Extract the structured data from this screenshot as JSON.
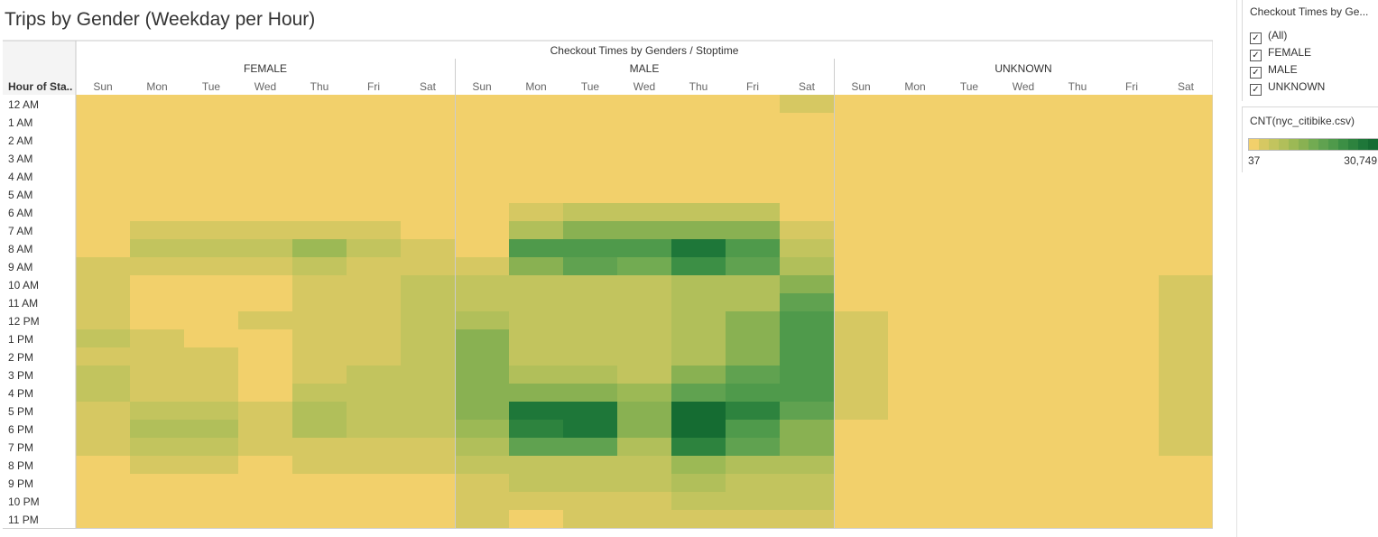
{
  "title": "Trips by Gender (Weekday per Hour)",
  "chart_data": {
    "type": "heatmap",
    "column_header": "Checkout Times by Genders / Stoptime",
    "row_header": "Hour of Sta..",
    "genders": [
      "FEMALE",
      "MALE",
      "UNKNOWN"
    ],
    "days": [
      "Sun",
      "Mon",
      "Tue",
      "Wed",
      "Thu",
      "Fri",
      "Sat"
    ],
    "hours": [
      "12 AM",
      "1 AM",
      "2 AM",
      "3 AM",
      "4 AM",
      "5 AM",
      "6 AM",
      "7 AM",
      "8 AM",
      "9 AM",
      "10 AM",
      "11 AM",
      "12 PM",
      "1 PM",
      "2 PM",
      "3 PM",
      "4 PM",
      "5 PM",
      "6 PM",
      "7 PM",
      "8 PM",
      "9 PM",
      "10 PM",
      "11 PM"
    ],
    "color_scale": {
      "measure": "CNT(nyc_citibike.csv)",
      "min": 37,
      "max": 30749,
      "min_label": "37",
      "max_label": "30,749",
      "colors": [
        "#f2d06b",
        "#d6c862",
        "#c2c45e",
        "#b1bf5a",
        "#9cb955",
        "#89b152",
        "#72ab52",
        "#60a250",
        "#4f9a4b",
        "#3c8f45",
        "#2d833e",
        "#1e7739",
        "#156c32"
      ]
    },
    "levels": {
      "FEMALE": [
        [
          0,
          0,
          0,
          0,
          0,
          0,
          0
        ],
        [
          0,
          0,
          0,
          0,
          0,
          0,
          0
        ],
        [
          0,
          0,
          0,
          0,
          0,
          0,
          0
        ],
        [
          0,
          0,
          0,
          0,
          0,
          0,
          0
        ],
        [
          0,
          0,
          0,
          0,
          0,
          0,
          0
        ],
        [
          0,
          0,
          0,
          0,
          0,
          0,
          0
        ],
        [
          0,
          0,
          0,
          0,
          0,
          0,
          0
        ],
        [
          0,
          1,
          1,
          1,
          1,
          1,
          0
        ],
        [
          0,
          2,
          2,
          2,
          4,
          2,
          1
        ],
        [
          1,
          1,
          1,
          1,
          2,
          1,
          1
        ],
        [
          1,
          0,
          0,
          0,
          1,
          1,
          2
        ],
        [
          1,
          0,
          0,
          0,
          1,
          1,
          2
        ],
        [
          1,
          0,
          0,
          1,
          1,
          1,
          2
        ],
        [
          2,
          1,
          0,
          0,
          1,
          1,
          2
        ],
        [
          1,
          1,
          1,
          0,
          1,
          1,
          2
        ],
        [
          2,
          1,
          1,
          0,
          1,
          2,
          2
        ],
        [
          2,
          1,
          1,
          0,
          2,
          2,
          2
        ],
        [
          1,
          2,
          2,
          1,
          3,
          2,
          2
        ],
        [
          1,
          3,
          3,
          1,
          3,
          2,
          2
        ],
        [
          1,
          2,
          2,
          1,
          1,
          1,
          1
        ],
        [
          0,
          1,
          1,
          0,
          1,
          1,
          1
        ],
        [
          0,
          0,
          0,
          0,
          0,
          0,
          0
        ],
        [
          0,
          0,
          0,
          0,
          0,
          0,
          0
        ],
        [
          0,
          0,
          0,
          0,
          0,
          0,
          0
        ]
      ],
      "MALE": [
        [
          0,
          0,
          0,
          0,
          0,
          0,
          1
        ],
        [
          0,
          0,
          0,
          0,
          0,
          0,
          0
        ],
        [
          0,
          0,
          0,
          0,
          0,
          0,
          0
        ],
        [
          0,
          0,
          0,
          0,
          0,
          0,
          0
        ],
        [
          0,
          0,
          0,
          0,
          0,
          0,
          0
        ],
        [
          0,
          0,
          0,
          0,
          0,
          0,
          0
        ],
        [
          0,
          1,
          2,
          2,
          2,
          2,
          0
        ],
        [
          0,
          3,
          5,
          5,
          5,
          5,
          1
        ],
        [
          0,
          8,
          8,
          8,
          11,
          8,
          2
        ],
        [
          1,
          5,
          7,
          6,
          9,
          7,
          3
        ],
        [
          2,
          2,
          2,
          2,
          3,
          3,
          5
        ],
        [
          2,
          2,
          2,
          2,
          3,
          3,
          7
        ],
        [
          3,
          2,
          2,
          2,
          3,
          5,
          8
        ],
        [
          5,
          2,
          2,
          2,
          3,
          5,
          8
        ],
        [
          5,
          2,
          2,
          2,
          3,
          5,
          8
        ],
        [
          5,
          3,
          3,
          2,
          5,
          7,
          8
        ],
        [
          5,
          5,
          5,
          4,
          7,
          8,
          8
        ],
        [
          5,
          11,
          11,
          5,
          12,
          10,
          7
        ],
        [
          4,
          10,
          11,
          5,
          12,
          8,
          5
        ],
        [
          3,
          7,
          7,
          3,
          10,
          7,
          5
        ],
        [
          2,
          2,
          2,
          2,
          4,
          3,
          3
        ],
        [
          1,
          2,
          2,
          2,
          3,
          2,
          2
        ],
        [
          1,
          1,
          1,
          1,
          2,
          2,
          2
        ],
        [
          1,
          0,
          1,
          1,
          1,
          1,
          1
        ]
      ],
      "UNKNOWN": [
        [
          0,
          0,
          0,
          0,
          0,
          0,
          0
        ],
        [
          0,
          0,
          0,
          0,
          0,
          0,
          0
        ],
        [
          0,
          0,
          0,
          0,
          0,
          0,
          0
        ],
        [
          0,
          0,
          0,
          0,
          0,
          0,
          0
        ],
        [
          0,
          0,
          0,
          0,
          0,
          0,
          0
        ],
        [
          0,
          0,
          0,
          0,
          0,
          0,
          0
        ],
        [
          0,
          0,
          0,
          0,
          0,
          0,
          0
        ],
        [
          0,
          0,
          0,
          0,
          0,
          0,
          0
        ],
        [
          0,
          0,
          0,
          0,
          0,
          0,
          0
        ],
        [
          0,
          0,
          0,
          0,
          0,
          0,
          0
        ],
        [
          0,
          0,
          0,
          0,
          0,
          0,
          1
        ],
        [
          0,
          0,
          0,
          0,
          0,
          0,
          1
        ],
        [
          1,
          0,
          0,
          0,
          0,
          0,
          1
        ],
        [
          1,
          0,
          0,
          0,
          0,
          0,
          1
        ],
        [
          1,
          0,
          0,
          0,
          0,
          0,
          1
        ],
        [
          1,
          0,
          0,
          0,
          0,
          0,
          1
        ],
        [
          1,
          0,
          0,
          0,
          0,
          0,
          1
        ],
        [
          1,
          0,
          0,
          0,
          0,
          0,
          1
        ],
        [
          0,
          0,
          0,
          0,
          0,
          0,
          1
        ],
        [
          0,
          0,
          0,
          0,
          0,
          0,
          1
        ],
        [
          0,
          0,
          0,
          0,
          0,
          0,
          0
        ],
        [
          0,
          0,
          0,
          0,
          0,
          0,
          0
        ],
        [
          0,
          0,
          0,
          0,
          0,
          0,
          0
        ],
        [
          0,
          0,
          0,
          0,
          0,
          0,
          0
        ]
      ]
    }
  },
  "filter": {
    "title": "Checkout Times by Ge...",
    "check_mark": "✓",
    "items": [
      {
        "label": "(All)",
        "checked": true
      },
      {
        "label": "FEMALE",
        "checked": true
      },
      {
        "label": "MALE",
        "checked": true
      },
      {
        "label": "UNKNOWN",
        "checked": true
      }
    ]
  }
}
